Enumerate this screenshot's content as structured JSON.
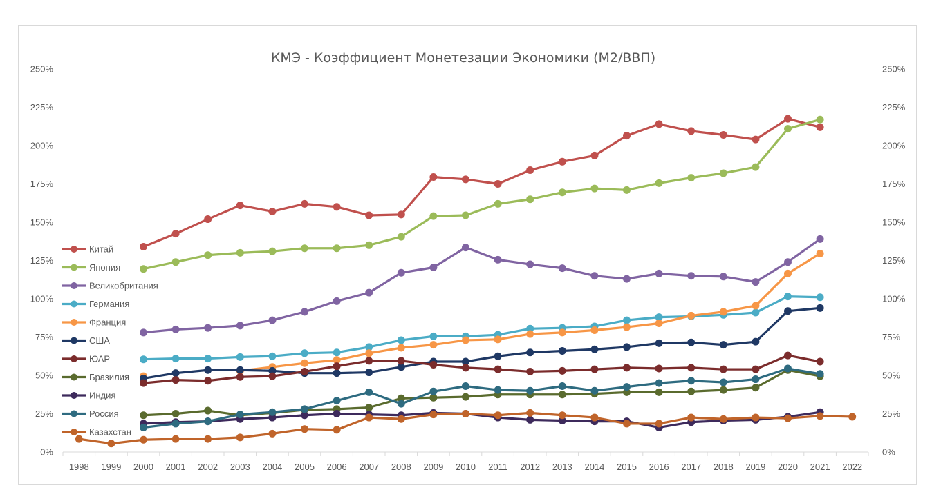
{
  "chart_data": {
    "type": "line",
    "title": "КМЭ - Коэффициент Монетезации Экономики (М2/ВВП)",
    "xlabel": "",
    "ylabel": "",
    "ylim": [
      0,
      250
    ],
    "y_ticks": [
      "0%",
      "25%",
      "50%",
      "75%",
      "100%",
      "125%",
      "150%",
      "175%",
      "200%",
      "225%",
      "250%"
    ],
    "categories": [
      "1998",
      "1999",
      "2000",
      "2001",
      "2002",
      "2003",
      "2004",
      "2005",
      "2006",
      "2007",
      "2008",
      "2009",
      "2010",
      "2011",
      "2012",
      "2013",
      "2014",
      "2015",
      "2016",
      "2017",
      "2018",
      "2019",
      "2020",
      "2021",
      "2022"
    ],
    "legend_position": "left",
    "gridlines": false,
    "series": [
      {
        "name": "Китай",
        "color": "#c0504d",
        "values": [
          null,
          null,
          134,
          142.5,
          152,
          161,
          157,
          162,
          160,
          154.5,
          155,
          179.5,
          178,
          175,
          184,
          189.5,
          193.5,
          206.5,
          214,
          209.5,
          207,
          204,
          217.5,
          212,
          null
        ]
      },
      {
        "name": "Япония",
        "color": "#9bbb59",
        "values": [
          null,
          null,
          119.5,
          124,
          128.5,
          130,
          131,
          133,
          133,
          135,
          140.5,
          154,
          154.5,
          162,
          165,
          169.5,
          172,
          171,
          175.5,
          179,
          182,
          186,
          211,
          217,
          null
        ]
      },
      {
        "name": "Великобритания",
        "color": "#8064a2",
        "values": [
          null,
          null,
          78,
          80,
          81,
          82.5,
          86,
          91.5,
          98.5,
          104,
          117,
          120.5,
          133.5,
          125.5,
          122.5,
          120,
          115,
          113,
          116.5,
          115,
          114.5,
          111,
          124,
          139,
          null
        ]
      },
      {
        "name": "Германия",
        "color": "#4bacc6",
        "values": [
          null,
          null,
          60.5,
          61,
          61,
          62,
          62.5,
          64.5,
          65,
          68.5,
          73,
          75.5,
          75.5,
          76.5,
          80.5,
          81,
          82,
          86,
          88,
          88.5,
          89.5,
          91,
          101.5,
          101,
          null
        ]
      },
      {
        "name": "Франция",
        "color": "#f79646",
        "values": [
          null,
          null,
          49.5,
          null,
          null,
          53,
          55.5,
          58,
          60,
          64.5,
          68,
          70,
          73,
          73.5,
          77,
          78,
          79.5,
          81.5,
          84,
          89,
          91.5,
          95.5,
          116.5,
          129.5,
          null
        ]
      },
      {
        "name": "США",
        "color": "#1f3864",
        "values": [
          null,
          null,
          48,
          51.5,
          53.5,
          53.5,
          53,
          51.5,
          51.5,
          52,
          55.5,
          59,
          59,
          62.5,
          65,
          66,
          67,
          68.5,
          71,
          71.5,
          70,
          72,
          92,
          94,
          null
        ]
      },
      {
        "name": "ЮАР",
        "color": "#7b2c2c",
        "values": [
          null,
          null,
          45,
          47,
          46.5,
          49,
          49.5,
          52.5,
          56,
          59.5,
          59.5,
          57,
          55,
          54,
          52.5,
          53,
          54,
          55,
          54.5,
          55,
          54,
          54,
          63,
          59,
          null
        ]
      },
      {
        "name": "Бразилия",
        "color": "#5a6b2e",
        "values": [
          null,
          null,
          24,
          25,
          27,
          24,
          25.5,
          27.5,
          28,
          29,
          35,
          35.5,
          36,
          37.5,
          37.5,
          37.5,
          38,
          39,
          39,
          39.5,
          40.5,
          42,
          53.5,
          49.5,
          null
        ]
      },
      {
        "name": "Индия",
        "color": "#3d2a5c",
        "values": [
          null,
          null,
          18.5,
          19.5,
          20,
          21.5,
          22.5,
          24,
          25,
          24.5,
          24,
          25.5,
          25,
          22.5,
          21,
          20.5,
          20,
          20,
          16,
          19.5,
          20.5,
          21,
          23,
          26,
          null
        ]
      },
      {
        "name": "Россия",
        "color": "#2e6b80",
        "values": [
          null,
          null,
          16,
          18.5,
          20,
          24.5,
          26,
          28,
          33.5,
          39,
          31.5,
          39.5,
          43,
          40.5,
          40,
          43,
          40,
          42.5,
          45,
          46.5,
          45.5,
          47.5,
          54.5,
          51,
          null
        ]
      },
      {
        "name": "Казахстан",
        "color": "#c0642a",
        "values": [
          8.5,
          5.5,
          8,
          8.5,
          8.5,
          9.5,
          12,
          15,
          14.5,
          22.5,
          21.5,
          24.5,
          25,
          24,
          25.5,
          24,
          22.5,
          18.5,
          18.5,
          22.5,
          21.5,
          22.5,
          22,
          23.5,
          23
        ]
      }
    ]
  }
}
